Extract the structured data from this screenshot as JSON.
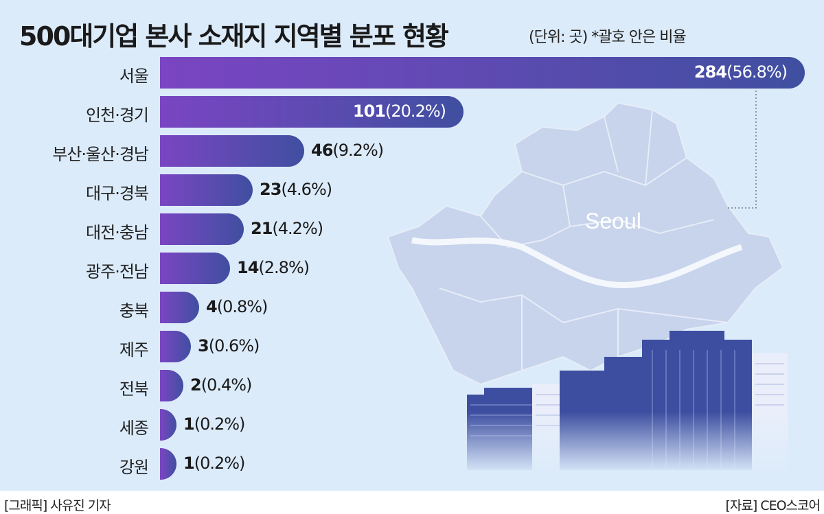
{
  "chart_data": {
    "type": "bar",
    "orientation": "horizontal",
    "title": "500대기업 본사 소재지 지역별 분포 현황",
    "subtitle": "(단위: 곳) *괄호 안은 비율",
    "categories": [
      "서울",
      "인천·경기",
      "부산·울산·경남",
      "대구·경북",
      "대전·충남",
      "광주·전남",
      "충북",
      "제주",
      "전북",
      "세종",
      "강원"
    ],
    "values": [
      284,
      101,
      46,
      23,
      21,
      14,
      4,
      3,
      2,
      1,
      1
    ],
    "percent_labels": [
      "(56.8%)",
      "(20.2%)",
      "(9.2%)",
      "(4.6%)",
      "(4.2%)",
      "(2.8%)",
      "(0.8%)",
      "(0.6%)",
      "(0.4%)",
      "(0.2%)",
      "(0.2%)"
    ],
    "value_labels": [
      "284",
      "101",
      "46",
      "23",
      "21",
      "14",
      "4",
      "3",
      "2",
      "1",
      "1"
    ],
    "map_label": "Seoul",
    "colors": {
      "bar_start": "#7a45c2",
      "bar_end": "#3f4fa0",
      "background": "#dcebfa"
    }
  },
  "footer": {
    "credit": "[그래픽] 사유진 기자",
    "source": "[자료] CEO스코어"
  }
}
